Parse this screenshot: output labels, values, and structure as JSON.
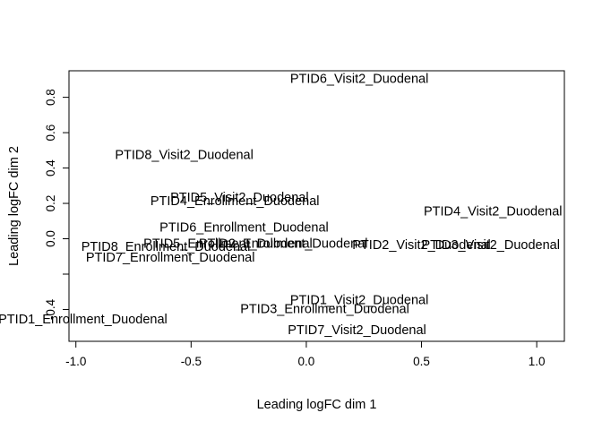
{
  "chart_data": {
    "type": "scatter",
    "title": "",
    "xlabel": "Leading logFC dim 1",
    "ylabel": "Leading logFC dim 2",
    "xlim": [
      -1.03,
      1.12
    ],
    "ylim": [
      -0.58,
      0.95
    ],
    "xticks": [
      {
        "value": -1.0,
        "label": "-1.0"
      },
      {
        "value": -0.5,
        "label": "-0.5"
      },
      {
        "value": 0.0,
        "label": "0.0"
      },
      {
        "value": 0.5,
        "label": "0.5"
      },
      {
        "value": 1.0,
        "label": "1.0"
      }
    ],
    "yticks": [
      {
        "value": -0.4,
        "label": "-0.4"
      },
      {
        "value": -0.2,
        "label": ""
      },
      {
        "value": 0.0,
        "label": "0.0"
      },
      {
        "value": 0.2,
        "label": "0.2"
      },
      {
        "value": 0.4,
        "label": "0.4"
      },
      {
        "value": 0.6,
        "label": "0.6"
      },
      {
        "value": 0.8,
        "label": "0.8"
      }
    ],
    "points": [
      {
        "label": "PTID6_Visit2_Duodenal",
        "x": 0.23,
        "y": 0.9
      },
      {
        "label": "PTID8_Visit2_Duodenal",
        "x": -0.53,
        "y": 0.47
      },
      {
        "label": "PTID5_Visit2_Duodenal",
        "x": -0.29,
        "y": 0.23
      },
      {
        "label": "PTID4_Enrollment_Duodenal",
        "x": -0.31,
        "y": 0.21
      },
      {
        "label": "PTID4_Visit2_Duodenal",
        "x": 0.81,
        "y": 0.15
      },
      {
        "label": "PTID6_Enrollment_Duodenal",
        "x": -0.27,
        "y": 0.06
      },
      {
        "label": "PTID5_Enrollment_Duodenal",
        "x": -0.34,
        "y": -0.03
      },
      {
        "label": "PTID2_Enrollment_Duodenal",
        "x": -0.1,
        "y": -0.03
      },
      {
        "label": "PTID2_Visit2_Duodenal",
        "x": 0.5,
        "y": -0.04
      },
      {
        "label": "PTID3_Visit2_Duodenal",
        "x": 0.8,
        "y": -0.04
      },
      {
        "label": "PTID8_Enrollment_Duodenal",
        "x": -0.61,
        "y": -0.05
      },
      {
        "label": "PTID7_Enrollment_Duodenal",
        "x": -0.59,
        "y": -0.11
      },
      {
        "label": "PTID1_Visit2_Duodenal",
        "x": 0.23,
        "y": -0.35
      },
      {
        "label": "PTID3_Enrollment_Duodenal",
        "x": 0.08,
        "y": -0.4
      },
      {
        "label": "PTID1_Enrollment_Duodenal",
        "x": -0.97,
        "y": -0.46
      },
      {
        "label": "PTID7_Visit2_Duodenal",
        "x": 0.22,
        "y": -0.52
      }
    ]
  }
}
